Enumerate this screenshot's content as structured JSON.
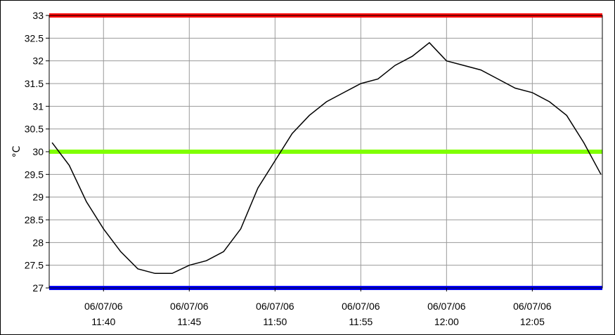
{
  "chart_data": {
    "type": "line",
    "title": "",
    "xlabel": "",
    "ylabel": "°C",
    "grid": true,
    "ylim": [
      27,
      33
    ],
    "yticks": [
      27,
      27.5,
      28,
      28.5,
      29,
      29.5,
      30,
      30.5,
      31,
      31.5,
      32,
      32.5,
      33
    ],
    "ytick_labels": [
      "27",
      "27.5",
      "28",
      "28.5",
      "29",
      "29.5",
      "30",
      "30.5",
      "31",
      "31.5",
      "32",
      "32.5",
      "33"
    ],
    "xlim": [
      "11:36:50",
      "12:09:05"
    ],
    "xticks": [
      {
        "time": "11:40",
        "date": "06/07/06"
      },
      {
        "time": "11:45",
        "date": "06/07/06"
      },
      {
        "time": "11:50",
        "date": "06/07/06"
      },
      {
        "time": "11:55",
        "date": "06/07/06"
      },
      {
        "time": "12:00",
        "date": "06/07/06"
      },
      {
        "time": "12:05",
        "date": "06/07/06"
      }
    ],
    "series": [
      {
        "color": "#000000",
        "x": [
          "11:37:00",
          "11:38:00",
          "11:39:00",
          "11:40:00",
          "11:41:00",
          "11:42:00",
          "11:43:00",
          "11:44:00",
          "11:45:00",
          "11:46:00",
          "11:47:00",
          "11:48:00",
          "11:49:00",
          "11:50:00",
          "11:51:00",
          "11:52:00",
          "11:53:00",
          "11:54:00",
          "11:55:00",
          "11:56:00",
          "11:57:00",
          "11:58:00",
          "11:59:00",
          "12:00:00",
          "12:01:00",
          "12:02:00",
          "12:03:00",
          "12:04:00",
          "12:05:00",
          "12:06:00",
          "12:07:00",
          "12:08:00",
          "12:09:00"
        ],
        "values": [
          30.2,
          29.7,
          28.9,
          28.3,
          27.8,
          27.42,
          27.32,
          27.32,
          27.5,
          27.6,
          27.8,
          28.3,
          29.2,
          29.8,
          30.4,
          30.8,
          31.1,
          31.3,
          31.5,
          31.6,
          31.9,
          32.1,
          32.4,
          32.0,
          31.9,
          31.8,
          31.6,
          31.4,
          31.3,
          31.1,
          30.8,
          30.2,
          29.5
        ]
      }
    ],
    "reference_lines": [
      {
        "value": 33,
        "color": "#ff0000"
      },
      {
        "value": 30,
        "color": "#80ff00"
      },
      {
        "value": 27,
        "color": "#0000ff"
      }
    ]
  }
}
